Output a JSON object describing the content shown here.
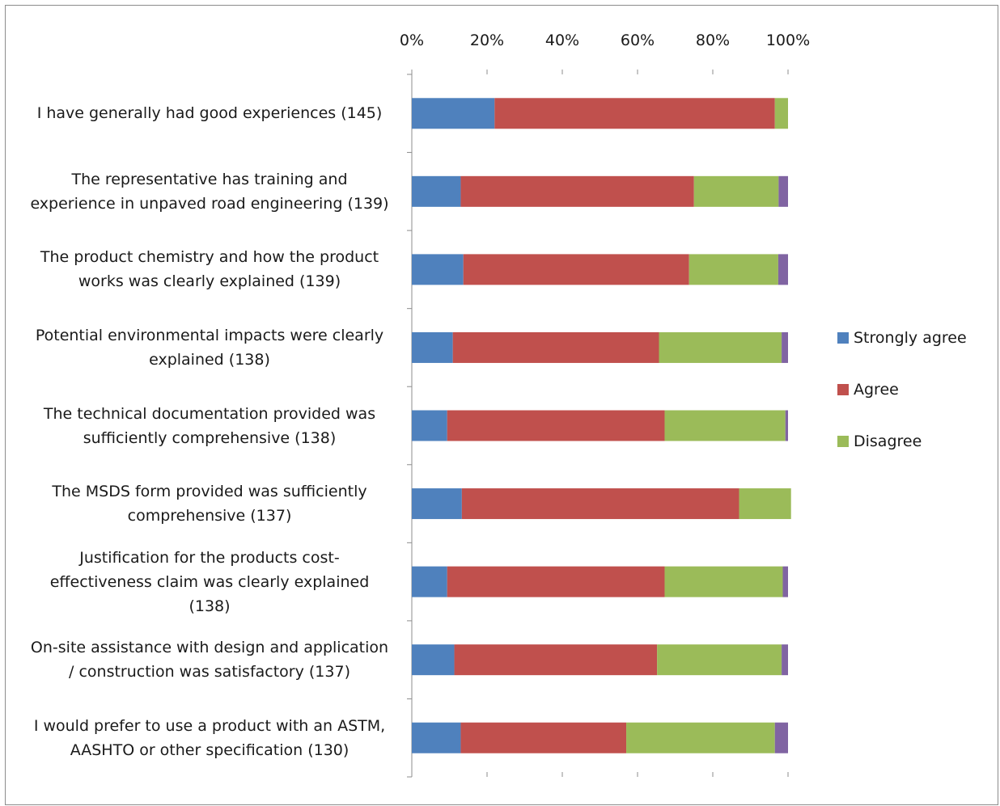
{
  "chart_data": {
    "type": "bar",
    "orientation": "horizontal",
    "stacked": true,
    "percent": true,
    "xlim": [
      0,
      100
    ],
    "ticks": [
      "0%",
      "20%",
      "40%",
      "60%",
      "80%",
      "100%"
    ],
    "tick_values": [
      0,
      20,
      40,
      60,
      80,
      100
    ],
    "legend_position": "right",
    "categories": [
      "I have generally had good experiences (145)",
      "The representative has training and\nexperience in unpaved road engineering (139)",
      "The product chemistry and how the product\nworks was clearly explained (139)",
      "Potential environmental impacts were clearly\nexplained (138)",
      "The technical documentation provided was\nsufficiently comprehensive (138)",
      "The MSDS form provided was sufficiently\ncomprehensive (137)",
      "Justification for the products cost-\neffectiveness claim was clearly explained\n(138)",
      "On-site assistance with design and application\n/ construction was satisfactory (137)",
      "I would prefer to use a product with an ASTM,\nAASHTO or other specification (130)"
    ],
    "series": [
      {
        "name": "Strongly agree",
        "color": "#4f81bd",
        "values": [
          22,
          13,
          13.7,
          10.9,
          9.4,
          13.3,
          9.4,
          11.3,
          13
        ]
      },
      {
        "name": "Agree",
        "color": "#c0504d",
        "values": [
          74.5,
          62,
          60,
          54.8,
          57.8,
          73.7,
          57.8,
          53.9,
          44
        ]
      },
      {
        "name": "Disagree",
        "color": "#9bbb59",
        "values": [
          3.5,
          22.5,
          23.7,
          32.6,
          32.1,
          13.8,
          31.4,
          33.1,
          39.5
        ]
      },
      {
        "color": "#8064a2",
        "values": [
          0,
          2.5,
          2.6,
          1.7,
          0.7,
          0,
          1.4,
          1.7,
          3.5
        ]
      }
    ]
  }
}
